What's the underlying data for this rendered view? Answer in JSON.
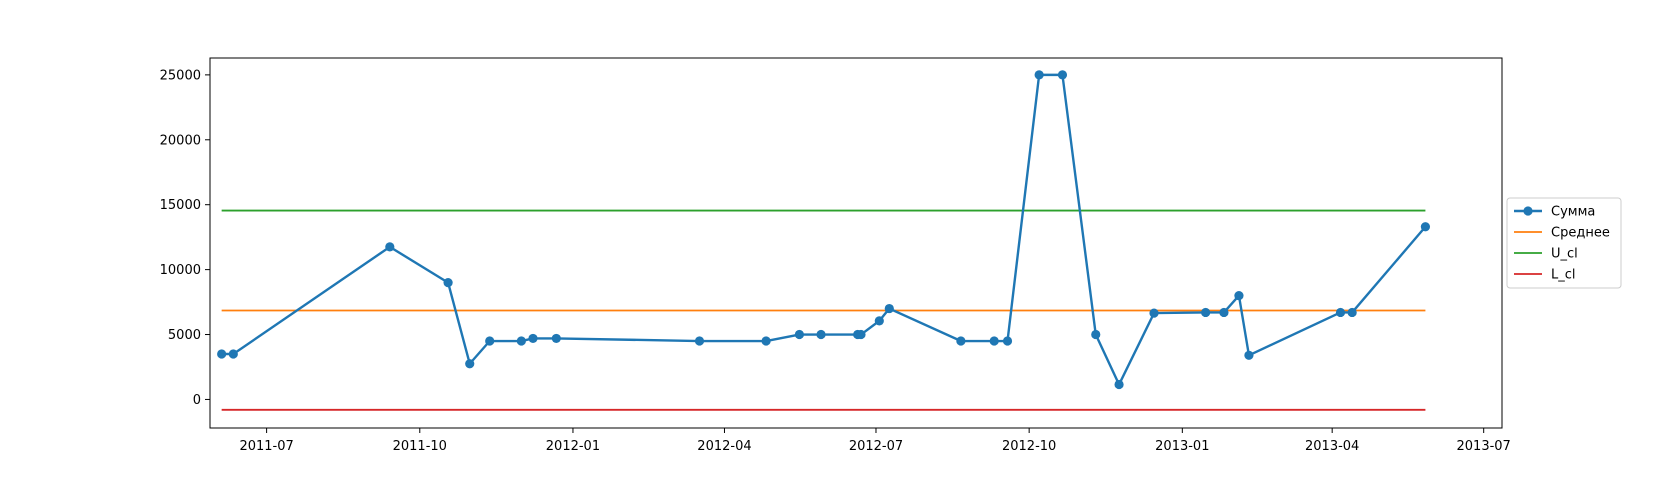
{
  "chart_data": {
    "type": "line",
    "title": "",
    "xlabel": "",
    "ylabel": "",
    "grid": false,
    "legend_position": "right",
    "xlim": [
      "2011-05-28",
      "2013-07-12"
    ],
    "ylim": [
      -2200,
      26300
    ],
    "x_ticks": [
      {
        "date": "2011-07-01",
        "label": "2011-07"
      },
      {
        "date": "2011-10-01",
        "label": "2011-10"
      },
      {
        "date": "2012-01-01",
        "label": "2012-01"
      },
      {
        "date": "2012-04-01",
        "label": "2012-04"
      },
      {
        "date": "2012-07-01",
        "label": "2012-07"
      },
      {
        "date": "2012-10-01",
        "label": "2012-10"
      },
      {
        "date": "2013-01-01",
        "label": "2013-01"
      },
      {
        "date": "2013-04-01",
        "label": "2013-04"
      },
      {
        "date": "2013-07-01",
        "label": "2013-07"
      }
    ],
    "y_ticks": [
      {
        "value": 0,
        "label": "0"
      },
      {
        "value": 5000,
        "label": "5000"
      },
      {
        "value": 10000,
        "label": "10000"
      },
      {
        "value": 15000,
        "label": "15000"
      },
      {
        "value": 20000,
        "label": "20000"
      },
      {
        "value": 25000,
        "label": "25000"
      }
    ],
    "series": [
      {
        "name": "Сумма",
        "color": "#1f77b4",
        "markers": true,
        "points": [
          {
            "x": "2011-06-04",
            "y": 3500
          },
          {
            "x": "2011-06-11",
            "y": 3500
          },
          {
            "x": "2011-09-13",
            "y": 11750
          },
          {
            "x": "2011-10-18",
            "y": 9000
          },
          {
            "x": "2011-10-31",
            "y": 2750
          },
          {
            "x": "2011-11-12",
            "y": 4500
          },
          {
            "x": "2011-12-01",
            "y": 4500
          },
          {
            "x": "2011-12-08",
            "y": 4700
          },
          {
            "x": "2011-12-22",
            "y": 4700
          },
          {
            "x": "2012-03-17",
            "y": 4500
          },
          {
            "x": "2012-04-26",
            "y": 4500
          },
          {
            "x": "2012-05-16",
            "y": 5000
          },
          {
            "x": "2012-05-29",
            "y": 5000
          },
          {
            "x": "2012-06-20",
            "y": 5000
          },
          {
            "x": "2012-06-22",
            "y": 5000
          },
          {
            "x": "2012-07-03",
            "y": 6050
          },
          {
            "x": "2012-07-09",
            "y": 7000
          },
          {
            "x": "2012-08-21",
            "y": 4500
          },
          {
            "x": "2012-09-10",
            "y": 4500
          },
          {
            "x": "2012-09-18",
            "y": 4500
          },
          {
            "x": "2012-10-07",
            "y": 25000
          },
          {
            "x": "2012-10-21",
            "y": 25000
          },
          {
            "x": "2012-11-10",
            "y": 5000
          },
          {
            "x": "2012-11-24",
            "y": 1150
          },
          {
            "x": "2012-12-15",
            "y": 6650
          },
          {
            "x": "2013-01-15",
            "y": 6700
          },
          {
            "x": "2013-01-26",
            "y": 6700
          },
          {
            "x": "2013-02-04",
            "y": 8000
          },
          {
            "x": "2013-02-10",
            "y": 3400
          },
          {
            "x": "2013-04-06",
            "y": 6700
          },
          {
            "x": "2013-04-13",
            "y": 6700
          },
          {
            "x": "2013-05-27",
            "y": 13300
          }
        ]
      },
      {
        "name": "Среднее",
        "color": "#ff7f0e",
        "markers": false,
        "points": [
          {
            "x": "2011-06-04",
            "y": 6850
          },
          {
            "x": "2013-05-27",
            "y": 6850
          }
        ]
      },
      {
        "name": "U_cl",
        "color": "#2ca02c",
        "markers": false,
        "points": [
          {
            "x": "2011-06-04",
            "y": 14550
          },
          {
            "x": "2013-05-27",
            "y": 14550
          }
        ]
      },
      {
        "name": "L_cl",
        "color": "#d62728",
        "markers": false,
        "points": [
          {
            "x": "2011-06-04",
            "y": -800
          },
          {
            "x": "2013-05-27",
            "y": -800
          }
        ]
      }
    ]
  }
}
